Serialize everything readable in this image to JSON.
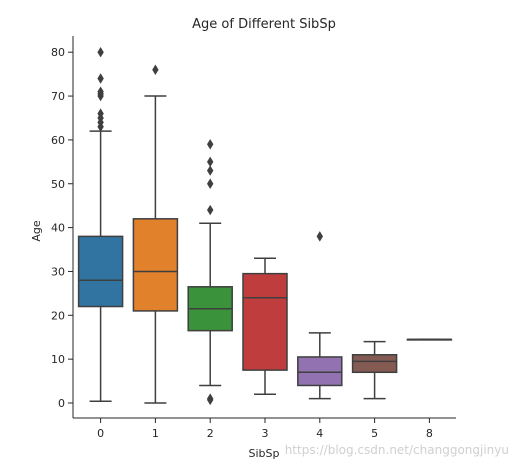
{
  "chart_data": {
    "type": "box",
    "title": "Age of Different SibSp",
    "xlabel": "SibSp",
    "ylabel": "Age",
    "ylim": [
      -3,
      84
    ],
    "yticks": [
      0,
      10,
      20,
      30,
      40,
      50,
      60,
      70,
      80
    ],
    "categories": [
      "0",
      "1",
      "2",
      "3",
      "4",
      "5",
      "8"
    ],
    "boxes": [
      {
        "category": "0",
        "whisker_low": 0.4,
        "q1": 22,
        "median": 28,
        "q3": 38,
        "whisker_high": 62,
        "outliers": [
          63,
          64,
          65,
          66,
          70,
          70.5,
          71,
          74,
          80
        ],
        "color": "#3274a1"
      },
      {
        "category": "1",
        "whisker_low": 0,
        "q1": 21,
        "median": 30,
        "q3": 42,
        "whisker_high": 70,
        "outliers": [
          76
        ],
        "color": "#e1812c"
      },
      {
        "category": "2",
        "whisker_low": 4,
        "q1": 16.5,
        "median": 21.5,
        "q3": 26.5,
        "whisker_high": 41,
        "outliers": [
          0.7,
          1,
          44,
          50,
          53,
          55,
          59
        ],
        "color": "#3a923a"
      },
      {
        "category": "3",
        "whisker_low": 2,
        "q1": 7.5,
        "median": 24,
        "q3": 29.5,
        "whisker_high": 33,
        "outliers": [],
        "color": "#c03d3e"
      },
      {
        "category": "4",
        "whisker_low": 1,
        "q1": 4,
        "median": 7,
        "q3": 10.5,
        "whisker_high": 16,
        "outliers": [
          38
        ],
        "color": "#9372b2"
      },
      {
        "category": "5",
        "whisker_low": 1,
        "q1": 7,
        "median": 9.5,
        "q3": 11,
        "whisker_high": 14,
        "outliers": [],
        "color": "#845b53"
      },
      {
        "category": "8",
        "whisker_low": 14.5,
        "q1": 14.5,
        "median": 14.5,
        "q3": 14.5,
        "whisker_high": 14.5,
        "outliers": [],
        "color": "#d684bd"
      }
    ],
    "grid": false,
    "legend": "none"
  },
  "watermark": "https://blog.csdn.net/changgongjinyu"
}
